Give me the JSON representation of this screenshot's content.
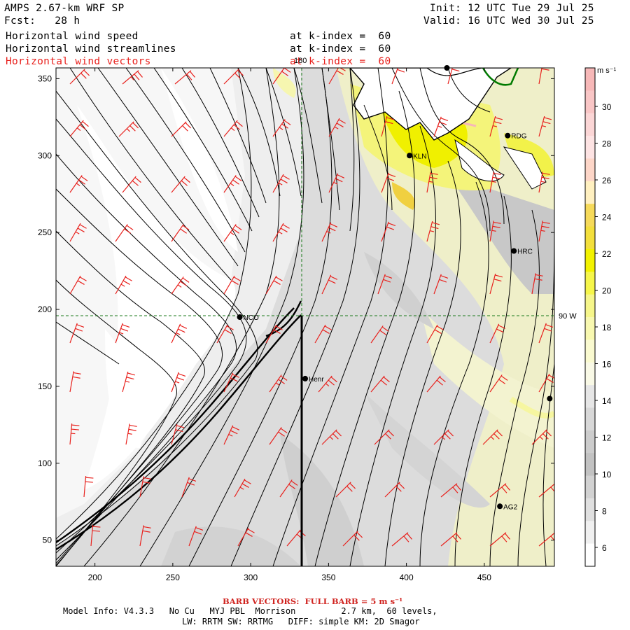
{
  "header": {
    "title": "AMPS 2.67-km WRF SP",
    "fcst": "Fcst:   28 h",
    "init": "Init: 12 UTC Tue 29 Jul 25",
    "valid": "Valid: 16 UTC Wed 30 Jul 25",
    "fields": [
      {
        "label": "Horizontal wind speed",
        "level": "at k-index =  60",
        "color": "black"
      },
      {
        "label": "Horizontal wind streamlines",
        "level": "at k-index =  60",
        "color": "black"
      },
      {
        "label": "Horizontal wind vectors",
        "level": "at k-index =  60",
        "color": "#e8201c"
      }
    ]
  },
  "map": {
    "x_axis": {
      "min": 175,
      "max": 495,
      "ticks": [
        200,
        250,
        300,
        350,
        400,
        450
      ]
    },
    "y_axis": {
      "min": 33,
      "max": 357,
      "ticks": [
        50,
        100,
        150,
        200,
        250,
        300,
        350
      ]
    },
    "grid_labels": {
      "meridian": "180",
      "parallel": "90 W"
    },
    "meridian_x": 330,
    "parallel_y": 195,
    "stations": [
      {
        "label": "",
        "x": 426,
        "y": 357
      },
      {
        "label": "RDG",
        "x": 465,
        "y": 313
      },
      {
        "label": "KLN",
        "x": 402,
        "y": 300
      },
      {
        "label": "HRC",
        "x": 469,
        "y": 238
      },
      {
        "label": "NCO",
        "x": 293,
        "y": 195
      },
      {
        "label": "Henr",
        "x": 335,
        "y": 155
      },
      {
        "label": "",
        "x": 492,
        "y": 142
      },
      {
        "label": "AG2",
        "x": 460,
        "y": 72
      }
    ]
  },
  "colorbar": {
    "unit": "m s⁻¹",
    "labels": [
      "30",
      "28",
      "26",
      "24",
      "22",
      "20",
      "18",
      "16",
      "14",
      "12",
      "10",
      "8",
      "6"
    ],
    "colors": [
      "#f7b8b8",
      "#f9c6c6",
      "#fbd6d6",
      "#fde3e3",
      "#fdd6c8",
      "#fff0c0",
      "#f6da5a",
      "#f3df3c",
      "#f2f200",
      "#f6f64a",
      "#f6f68a",
      "#f8f8b0",
      "#fafad0",
      "#f9f9e6",
      "#e6e6e6",
      "#d8d8d8",
      "#cccccc",
      "#c2c2c2",
      "#d2d2d2",
      "#e0e0e0",
      "#f0f0f0",
      "#ffffff"
    ]
  },
  "footer": {
    "barb": "BARB VECTORS:  FULL BARB = 5 m s⁻¹",
    "line1": "Model Info: V4.3.3   No Cu   MYJ PBL  Morrison         2.7 km,  60 levels,",
    "line2": "LW: RRTM SW: RRTMG   DIFF: simple KM: 2D Smagor"
  }
}
